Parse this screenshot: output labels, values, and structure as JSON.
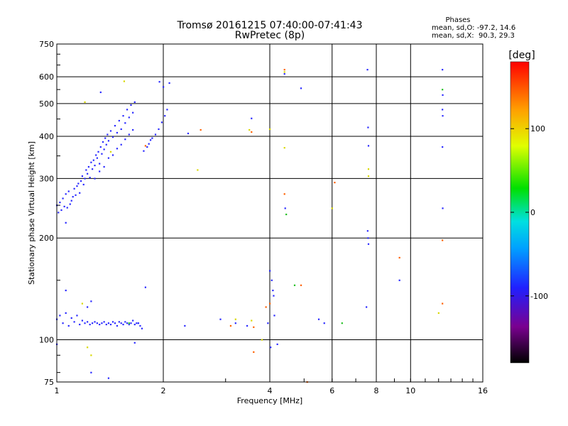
{
  "chart_data": {
    "type": "scatter",
    "title": "Tromsø 20161215 07:40:00-07:41:43",
    "subtitle": "RwPretec (8p)",
    "stats": {
      "heading": "Phases",
      "line1": "mean, sd,O: -97.2, 14.6",
      "line2": "mean, sd,X:  90.3, 29.3"
    },
    "xlabel": "Frequency [MHz]",
    "ylabel": "Stationary phase Virtual Height [km]",
    "xscale": "log",
    "yscale": "log",
    "xlim": [
      1,
      16
    ],
    "ylim": [
      75,
      750
    ],
    "grid": true,
    "xticks": [
      1,
      2,
      4,
      6,
      8,
      10,
      16
    ],
    "xtick_labels": [
      "1",
      "2",
      "4",
      "6",
      "8",
      "10",
      "16"
    ],
    "xgrid": [
      2,
      4,
      6,
      8,
      10
    ],
    "yticks": [
      75,
      100,
      200,
      300,
      400,
      500,
      600,
      750
    ],
    "ytick_labels": [
      "75",
      "100",
      "200",
      "300",
      "400",
      "500",
      "600",
      "750"
    ],
    "ygrid": [
      100,
      200,
      300,
      400,
      500,
      600
    ],
    "colorbar": {
      "label": "[deg]",
      "range": [
        -180,
        180
      ],
      "ticks": [
        100,
        0,
        -100
      ],
      "tick_labels": [
        "100",
        "0",
        "-100"
      ]
    },
    "colors": {
      "axis": "#000000",
      "background": "#ffffff",
      "dominant_phase": "#1f2fff"
    },
    "series": [
      {
        "phase": -100,
        "points": [
          [
            1.0,
            250
          ],
          [
            1.01,
            238
          ],
          [
            1.02,
            255
          ],
          [
            1.03,
            242
          ],
          [
            1.04,
            262
          ],
          [
            1.05,
            248
          ],
          [
            1.06,
            270
          ],
          [
            1.07,
            246
          ],
          [
            1.08,
            275
          ],
          [
            1.09,
            252
          ],
          [
            1.1,
            258
          ],
          [
            1.11,
            265
          ],
          [
            1.12,
            280
          ],
          [
            1.13,
            268
          ],
          [
            1.14,
            285
          ],
          [
            1.15,
            290
          ],
          [
            1.16,
            272
          ],
          [
            1.17,
            295
          ],
          [
            1.18,
            305
          ],
          [
            1.19,
            288
          ],
          [
            1.2,
            300
          ],
          [
            1.21,
            318
          ],
          [
            1.22,
            310
          ],
          [
            1.23,
            325
          ],
          [
            1.24,
            302
          ],
          [
            1.25,
            335
          ],
          [
            1.26,
            320
          ],
          [
            1.27,
            340
          ],
          [
            1.28,
            328
          ],
          [
            1.29,
            352
          ],
          [
            1.3,
            345
          ],
          [
            1.31,
            360
          ],
          [
            1.32,
            332
          ],
          [
            1.33,
            372
          ],
          [
            1.34,
            355
          ],
          [
            1.35,
            385
          ],
          [
            1.36,
            366
          ],
          [
            1.37,
            395
          ],
          [
            1.38,
            378
          ],
          [
            1.39,
            405
          ],
          [
            1.4,
            388
          ],
          [
            1.42,
            415
          ],
          [
            1.44,
            398
          ],
          [
            1.46,
            430
          ],
          [
            1.48,
            410
          ],
          [
            1.5,
            445
          ],
          [
            1.52,
            420
          ],
          [
            1.54,
            460
          ],
          [
            1.56,
            438
          ],
          [
            1.58,
            480
          ],
          [
            1.6,
            455
          ],
          [
            1.62,
            495
          ],
          [
            1.64,
            470
          ],
          [
            1.66,
            505
          ],
          [
            1.28,
            300
          ],
          [
            1.32,
            315
          ],
          [
            1.36,
            325
          ],
          [
            1.4,
            345
          ],
          [
            1.44,
            352
          ],
          [
            1.48,
            368
          ],
          [
            1.52,
            378
          ],
          [
            1.56,
            392
          ],
          [
            1.6,
            405
          ],
          [
            1.64,
            418
          ],
          [
            1.33,
            540
          ],
          [
            1.82,
            380
          ],
          [
            1.86,
            395
          ],
          [
            1.9,
            405
          ],
          [
            1.94,
            420
          ],
          [
            1.98,
            440
          ],
          [
            2.02,
            460
          ],
          [
            2.05,
            480
          ],
          [
            1.95,
            580
          ],
          [
            2.0,
            560
          ],
          [
            2.08,
            575
          ],
          [
            1.76,
            362
          ],
          [
            1.8,
            372
          ],
          [
            1.84,
            390
          ],
          [
            1.0,
            115
          ],
          [
            1.02,
            118
          ],
          [
            1.04,
            112
          ],
          [
            1.06,
            120
          ],
          [
            1.08,
            110
          ],
          [
            1.1,
            116
          ],
          [
            1.12,
            113
          ],
          [
            1.14,
            118
          ],
          [
            1.16,
            111
          ],
          [
            1.18,
            114
          ],
          [
            1.2,
            112
          ],
          [
            1.22,
            113
          ],
          [
            1.24,
            111
          ],
          [
            1.26,
            112
          ],
          [
            1.28,
            113
          ],
          [
            1.3,
            112
          ],
          [
            1.32,
            111
          ],
          [
            1.34,
            112
          ],
          [
            1.36,
            113
          ],
          [
            1.38,
            111
          ],
          [
            1.4,
            112
          ],
          [
            1.42,
            111
          ],
          [
            1.44,
            113
          ],
          [
            1.46,
            112
          ],
          [
            1.48,
            110
          ],
          [
            1.5,
            113
          ],
          [
            1.52,
            112
          ],
          [
            1.54,
            111
          ],
          [
            1.56,
            113
          ],
          [
            1.58,
            112
          ],
          [
            1.6,
            111
          ],
          [
            1.62,
            112
          ],
          [
            1.64,
            114
          ],
          [
            1.66,
            111
          ],
          [
            1.68,
            112
          ],
          [
            1.7,
            112
          ],
          [
            1.72,
            110
          ],
          [
            1.74,
            108
          ],
          [
            1.06,
            140
          ],
          [
            1.22,
            125
          ],
          [
            1.25,
            130
          ],
          [
            1.78,
            143
          ],
          [
            1.0,
            97
          ],
          [
            1.25,
            80
          ],
          [
            1.4,
            77
          ],
          [
            1.66,
            98
          ],
          [
            1.06,
            222
          ],
          [
            2.35,
            408
          ],
          [
            3.55,
            452
          ],
          [
            4.4,
            612
          ],
          [
            4.9,
            555
          ],
          [
            7.55,
            630
          ],
          [
            7.58,
            425
          ],
          [
            7.6,
            375
          ],
          [
            7.56,
            210
          ],
          [
            7.58,
            200
          ],
          [
            7.6,
            192
          ],
          [
            7.5,
            125
          ],
          [
            9.3,
            150
          ],
          [
            12.3,
            630
          ],
          [
            12.32,
            530
          ],
          [
            12.3,
            480
          ],
          [
            12.32,
            460
          ],
          [
            12.3,
            372
          ],
          [
            12.32,
            245
          ],
          [
            2.9,
            115
          ],
          [
            3.2,
            112
          ],
          [
            3.45,
            110
          ],
          [
            4.0,
            160
          ],
          [
            4.05,
            150
          ],
          [
            4.08,
            140
          ],
          [
            4.1,
            135
          ],
          [
            4.12,
            118
          ],
          [
            4.02,
            95
          ],
          [
            4.2,
            97
          ],
          [
            4.42,
            245
          ],
          [
            5.5,
            115
          ],
          [
            5.7,
            112
          ],
          [
            3.95,
            112
          ],
          [
            2.3,
            110
          ]
        ]
      },
      {
        "phase": 20,
        "points": [
          [
            1.6,
            112
          ],
          [
            4.7,
            145
          ],
          [
            6.4,
            112
          ],
          [
            12.3,
            550
          ],
          [
            4.45,
            235
          ]
        ]
      },
      {
        "phase": 100,
        "points": [
          [
            1.55,
            582
          ],
          [
            1.2,
            505
          ],
          [
            1.42,
            360
          ],
          [
            2.5,
            318
          ],
          [
            3.5,
            418
          ],
          [
            4.0,
            420
          ],
          [
            4.4,
            370
          ],
          [
            7.6,
            320
          ],
          [
            7.6,
            305
          ],
          [
            4.4,
            620
          ],
          [
            1.18,
            128
          ],
          [
            1.22,
            95
          ],
          [
            1.25,
            90
          ],
          [
            3.8,
            100
          ],
          [
            6.0,
            245
          ],
          [
            12.0,
            120
          ],
          [
            3.2,
            115
          ],
          [
            3.55,
            114
          ]
        ]
      },
      {
        "phase": 150,
        "points": [
          [
            4.4,
            630
          ],
          [
            4.4,
            270
          ],
          [
            3.55,
            412
          ],
          [
            2.55,
            418
          ],
          [
            1.78,
            375
          ],
          [
            3.9,
            125
          ],
          [
            4.9,
            145
          ],
          [
            3.6,
            92
          ],
          [
            9.3,
            175
          ],
          [
            12.3,
            197
          ],
          [
            12.3,
            128
          ],
          [
            3.1,
            110
          ],
          [
            4.0,
            128
          ],
          [
            5.1,
            75
          ],
          [
            6.1,
            292
          ],
          [
            3.6,
            109
          ]
        ]
      }
    ]
  }
}
